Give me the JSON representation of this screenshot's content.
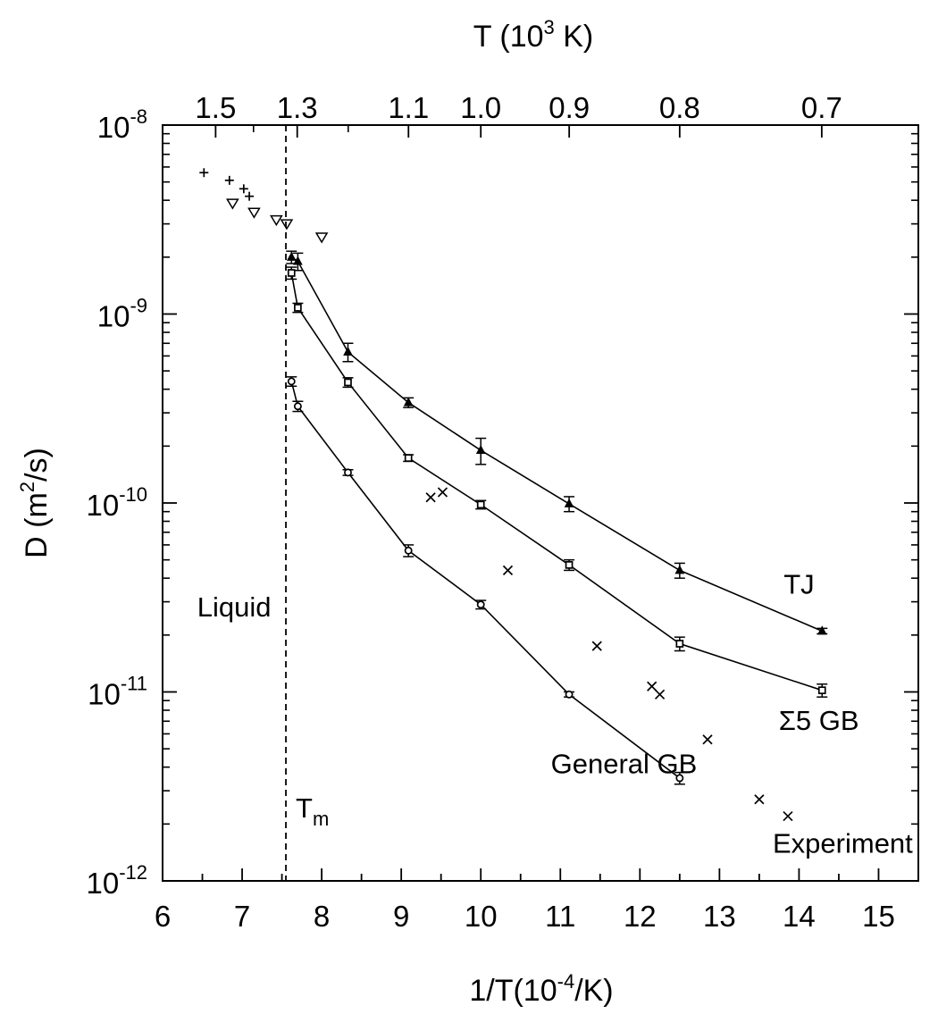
{
  "chart_data": {
    "type": "scatter",
    "xlabel": "1/T(10",
    "xlabel_exp": "-4",
    "xlabel_tail": "/K)",
    "ylabel_pre": "D (m",
    "ylabel_exp": "2",
    "ylabel_post": "/s)",
    "top_label_pre": "T (10",
    "top_label_exp": "3",
    "top_label_post": " K)",
    "xlim": [
      6,
      15.5
    ],
    "ylim_log10": [
      -12,
      -8
    ],
    "y_scale": "log",
    "x_ticks": [
      6,
      7,
      8,
      9,
      10,
      11,
      12,
      13,
      14,
      15
    ],
    "y_ticks": [
      {
        "value_log10": -8,
        "base": "10",
        "exp": "-8"
      },
      {
        "value_log10": -9,
        "base": "10",
        "exp": "-9"
      },
      {
        "value_log10": -10,
        "base": "10",
        "exp": "-10"
      },
      {
        "value_log10": -11,
        "base": "10",
        "exp": "-11"
      },
      {
        "value_log10": -12,
        "base": "10",
        "exp": "-12"
      }
    ],
    "top_ticks": [
      {
        "label": "1.5",
        "T_kK": 1.5
      },
      {
        "label": "1.3",
        "T_kK": 1.3
      },
      {
        "label": "1.1",
        "T_kK": 1.1
      },
      {
        "label": "1.0",
        "T_kK": 1.0
      },
      {
        "label": "0.9",
        "T_kK": 0.9
      },
      {
        "label": "0.8",
        "T_kK": 0.8
      },
      {
        "label": "0.7",
        "T_kK": 0.7
      }
    ],
    "melting_line_x": 7.55,
    "series": [
      {
        "label": "TJ",
        "marker": "triangle",
        "points": [
          {
            "x": 7.62,
            "y": 2e-09,
            "err": 1.5e-10
          },
          {
            "x": 7.7,
            "y": 1.9e-09,
            "err": 2e-10
          },
          {
            "x": 8.33,
            "y": 6.3e-10,
            "err": 7e-11
          },
          {
            "x": 9.09,
            "y": 3.4e-10,
            "err": 2e-11
          },
          {
            "x": 10.0,
            "y": 1.9e-10,
            "err": 3e-11
          },
          {
            "x": 11.11,
            "y": 9.9e-11,
            "err": 9e-12
          },
          {
            "x": 12.5,
            "y": 4.4e-11,
            "err": 4e-12
          },
          {
            "x": 14.29,
            "y": 2.1e-11,
            "err": 7e-13
          }
        ]
      },
      {
        "label": "Σ5 GB",
        "marker": "square",
        "points": [
          {
            "x": 7.62,
            "y": 1.65e-09,
            "err": 1.2e-10
          },
          {
            "x": 7.7,
            "y": 1.08e-09,
            "err": 6e-11
          },
          {
            "x": 8.33,
            "y": 4.35e-10,
            "err": 2.5e-11
          },
          {
            "x": 9.09,
            "y": 1.73e-10,
            "err": 7e-12
          },
          {
            "x": 10.0,
            "y": 9.8e-11,
            "err": 5e-12
          },
          {
            "x": 11.11,
            "y": 4.7e-11,
            "err": 3e-12
          },
          {
            "x": 12.5,
            "y": 1.8e-11,
            "err": 1.5e-12
          },
          {
            "x": 14.29,
            "y": 1.02e-11,
            "err": 8e-13
          }
        ]
      },
      {
        "label": "General GB",
        "marker": "circle",
        "points": [
          {
            "x": 7.62,
            "y": 4.4e-10,
            "err": 2.5e-11
          },
          {
            "x": 7.7,
            "y": 3.25e-10,
            "err": 2e-11
          },
          {
            "x": 8.33,
            "y": 1.45e-10,
            "err": 5e-12
          },
          {
            "x": 9.09,
            "y": 5.6e-11,
            "err": 4e-12
          },
          {
            "x": 10.0,
            "y": 2.9e-11,
            "err": 1.5e-12
          },
          {
            "x": 11.11,
            "y": 9.7e-12,
            "err": 3e-13
          },
          {
            "x": 12.5,
            "y": 3.5e-12,
            "err": 2.5e-13
          }
        ]
      },
      {
        "label": "Experiment",
        "marker": "x",
        "points": [
          {
            "x": 9.37,
            "y": 1.07e-10
          },
          {
            "x": 9.52,
            "y": 1.14e-10
          },
          {
            "x": 10.34,
            "y": 4.4e-11
          },
          {
            "x": 11.46,
            "y": 1.75e-11
          },
          {
            "x": 12.15,
            "y": 1.07e-11
          },
          {
            "x": 12.25,
            "y": 9.7e-12
          },
          {
            "x": 12.85,
            "y": 5.6e-12
          },
          {
            "x": 13.5,
            "y": 2.7e-12
          },
          {
            "x": 13.86,
            "y": 2.2e-12
          }
        ]
      },
      {
        "label": "liquid-plus",
        "marker": "plus",
        "points": [
          {
            "x": 6.52,
            "y": 5.6e-09
          },
          {
            "x": 6.84,
            "y": 5.1e-09
          },
          {
            "x": 7.02,
            "y": 4.6e-09
          },
          {
            "x": 7.09,
            "y": 4.2e-09
          }
        ]
      },
      {
        "label": "liquid-triangle-down",
        "marker": "triangle-down",
        "points": [
          {
            "x": 6.88,
            "y": 3.85e-09
          },
          {
            "x": 7.15,
            "y": 3.45e-09
          },
          {
            "x": 7.43,
            "y": 3.15e-09
          },
          {
            "x": 7.56,
            "y": 3e-09
          },
          {
            "x": 8.0,
            "y": 2.55e-09
          }
        ]
      }
    ],
    "annotations": [
      {
        "text": "TJ",
        "x": 14.0,
        "y_log10": -10.48
      },
      {
        "text": "Σ5 GB",
        "x": 14.25,
        "y_log10": -11.2
      },
      {
        "text": "General GB",
        "x": 11.8,
        "y_log10": -11.43
      },
      {
        "text": "Experiment",
        "x": 14.55,
        "y_log10": -11.85
      },
      {
        "text": "Liquid",
        "x": 6.9,
        "y_log10": -10.6
      }
    ],
    "tm_label": {
      "base": "T",
      "sub": "m"
    }
  }
}
